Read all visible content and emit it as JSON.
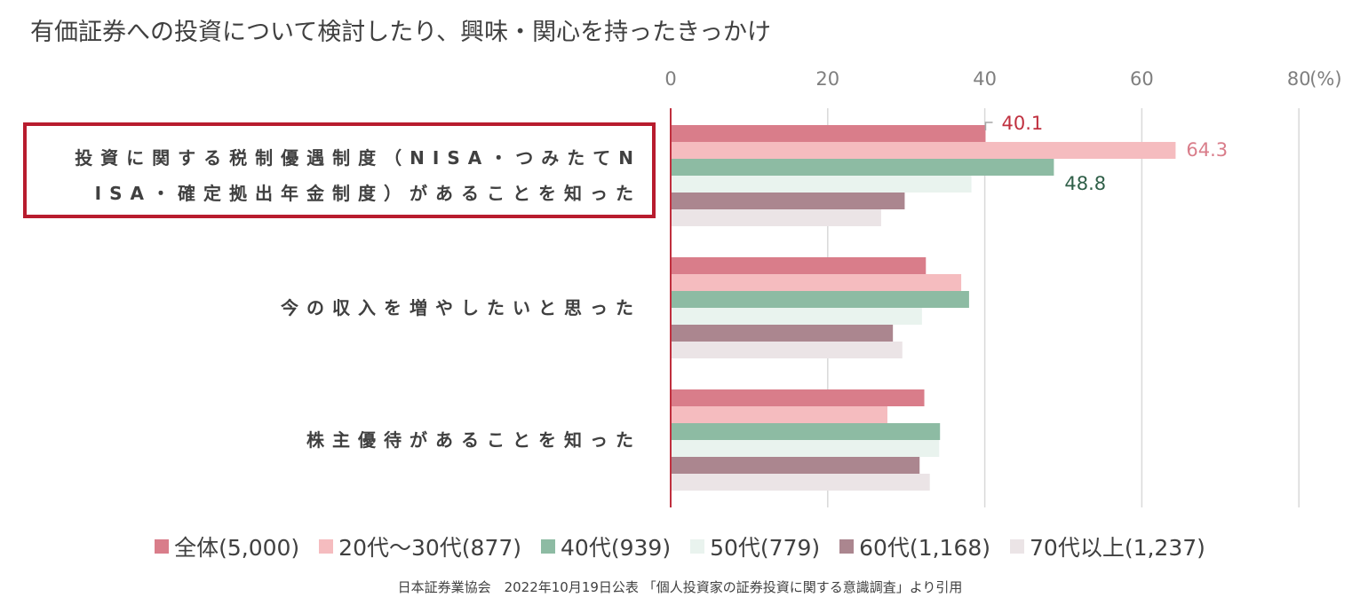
{
  "title": "有価証券への投資について検討したり、興味・関心を持ったきっかけ",
  "source": "日本証券業協会　2022年10月19日公表 「個人投資家の証券投資に関する意識調査」より引用",
  "chart_data": {
    "type": "bar",
    "orientation": "horizontal",
    "title": "有価証券への投資について検討したり、興味・関心を持ったきっかけ",
    "xlim": [
      0,
      80
    ],
    "x_ticks": [
      "0",
      "20",
      "40",
      "60",
      "80"
    ],
    "unit": "(%)",
    "grid": true,
    "legend_position": "bottom",
    "categories": [
      [
        "投資に関する税制優遇制度（NISA・つみたてN",
        "ISA・確定拠出年金制度）があることを知った"
      ],
      [
        "今の収入を増やしたいと思った"
      ],
      [
        "株主優待があることを知った"
      ]
    ],
    "highlighted_category": 0,
    "series": [
      {
        "name": "全体(5,000)",
        "color": "#d97d8a",
        "values": [
          40.1,
          32.5,
          32.3
        ]
      },
      {
        "name": "20代～30代(877)",
        "color": "#f5bcbf",
        "values": [
          64.3,
          37.0,
          27.6
        ]
      },
      {
        "name": "40代(939)",
        "color": "#8dbba3",
        "values": [
          48.8,
          38.0,
          34.3
        ]
      },
      {
        "name": "50代(779)",
        "color": "#e9f3ee",
        "values": [
          38.3,
          32.0,
          34.2
        ]
      },
      {
        "name": "60代(1,168)",
        "color": "#ab868f",
        "values": [
          29.8,
          28.3,
          31.7
        ]
      },
      {
        "name": "70代以上(1,237)",
        "color": "#ebe4e6",
        "values": [
          26.8,
          29.5,
          33.0
        ]
      }
    ],
    "data_labels": [
      {
        "series": 0,
        "category": 0,
        "text": "40.1",
        "color": "#c0303f"
      },
      {
        "series": 1,
        "category": 0,
        "text": "64.3",
        "color": "#d97d8a"
      },
      {
        "series": 2,
        "category": 0,
        "text": "48.8",
        "color": "#2f5f48"
      }
    ]
  }
}
